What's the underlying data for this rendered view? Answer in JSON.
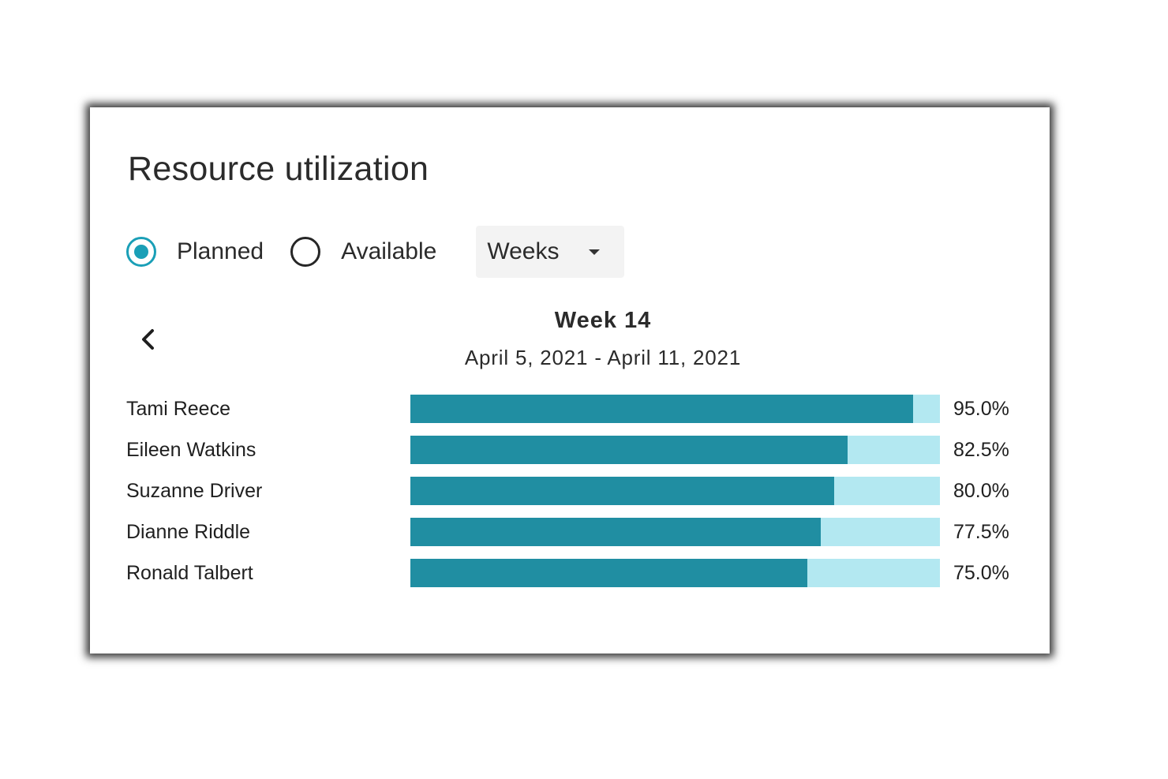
{
  "panel": {
    "title": "Resource utilization"
  },
  "mode": {
    "options": [
      {
        "label": "Planned",
        "selected": true
      },
      {
        "label": "Available",
        "selected": false
      }
    ]
  },
  "period_select": {
    "value": "Weeks"
  },
  "period": {
    "title": "Week 14",
    "range": "April 5, 2021 - April 11, 2021"
  },
  "icons": {
    "prev": "chevron-left-icon",
    "dropdown": "caret-down-icon"
  },
  "colors": {
    "accent": "#1a9fb7",
    "bar_fill": "#208ea2",
    "bar_track": "#b3e8f1"
  },
  "chart_data": {
    "type": "bar",
    "orientation": "horizontal",
    "categories": [
      "Tami Reece",
      "Eileen Watkins",
      "Suzanne Driver",
      "Dianne Riddle",
      "Ronald Talbert"
    ],
    "values": [
      95.0,
      82.5,
      80.0,
      77.5,
      75.0
    ],
    "value_labels": [
      "95.0%",
      "82.5%",
      "80.0%",
      "77.5%",
      "75.0%"
    ],
    "xlim": [
      0,
      100
    ]
  }
}
